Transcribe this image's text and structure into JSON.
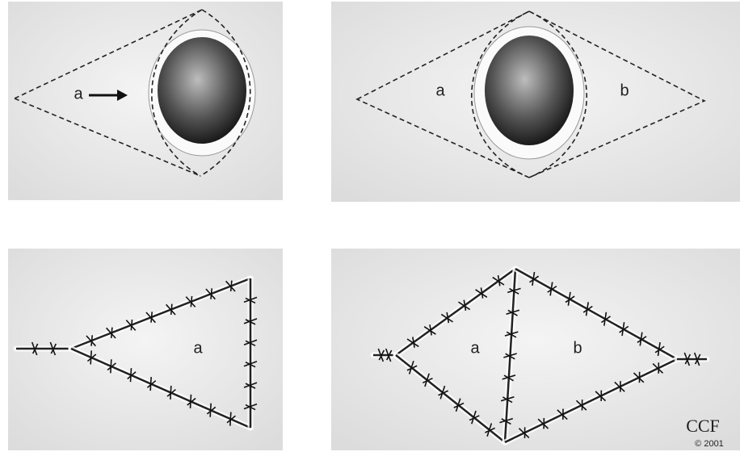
{
  "panels": [
    {
      "labels": [
        "a"
      ]
    },
    {
      "labels": [
        "a",
        "b"
      ]
    },
    {
      "labels": [
        "a"
      ]
    },
    {
      "labels": [
        "a",
        "b"
      ]
    }
  ],
  "credit": {
    "text": "CCF",
    "year": "© 2001"
  }
}
